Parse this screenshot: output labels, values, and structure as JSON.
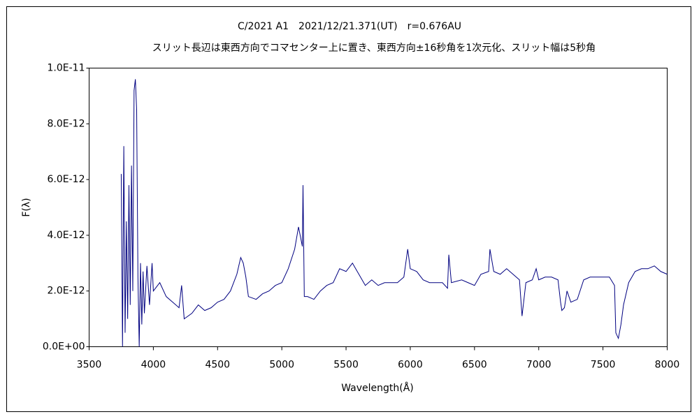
{
  "chart_data": {
    "type": "line",
    "title": "C/2021 A1　2021/12/21.371(UT)　r=0.676AU",
    "subtitle": "スリット長辺は東西方向でコマセンター上に置き、東西方向±16秒角を1次元化、スリット幅は5秒角",
    "x_label": "Wavelength(Å)",
    "y_label": "F(λ)",
    "color": "#000080",
    "xlim": [
      3500,
      8000
    ],
    "xticks": [
      3500,
      4000,
      4500,
      5000,
      5500,
      6000,
      6500,
      7000,
      7500,
      8000
    ],
    "ylim": [
      0,
      1e-11
    ],
    "yticks": [
      {
        "value": 0,
        "label": "0.0E+00"
      },
      {
        "value": 2e-12,
        "label": "2.0E-12"
      },
      {
        "value": 4e-12,
        "label": "4.0E-12"
      },
      {
        "value": 6e-12,
        "label": "6.0E-12"
      },
      {
        "value": 8e-12,
        "label": "8.0E-12"
      },
      {
        "value": 1e-11,
        "label": "1.0E-11"
      }
    ],
    "grid": false,
    "x": [
      3750,
      3760,
      3770,
      3780,
      3790,
      3800,
      3810,
      3820,
      3830,
      3840,
      3850,
      3860,
      3870,
      3880,
      3890,
      3900,
      3910,
      3920,
      3930,
      3950,
      3970,
      3990,
      4000,
      4050,
      4100,
      4150,
      4200,
      4220,
      4240,
      4300,
      4350,
      4400,
      4450,
      4500,
      4550,
      4600,
      4650,
      4680,
      4700,
      4720,
      4740,
      4800,
      4850,
      4900,
      4950,
      5000,
      5050,
      5100,
      5130,
      5160,
      5165,
      5175,
      5200,
      5250,
      5300,
      5350,
      5400,
      5450,
      5500,
      5550,
      5600,
      5650,
      5700,
      5750,
      5800,
      5850,
      5900,
      5950,
      5980,
      6000,
      6050,
      6100,
      6150,
      6200,
      6250,
      6290,
      6300,
      6320,
      6400,
      6450,
      6500,
      6550,
      6610,
      6620,
      6650,
      6700,
      6750,
      6800,
      6850,
      6870,
      6900,
      6950,
      6980,
      7000,
      7050,
      7100,
      7150,
      7170,
      7180,
      7200,
      7220,
      7250,
      7300,
      7350,
      7400,
      7450,
      7500,
      7550,
      7590,
      7600,
      7620,
      7640,
      7660,
      7700,
      7750,
      7800,
      7850,
      7900,
      7950,
      8000
    ],
    "values": [
      6.2e-12,
      0,
      7.2e-12,
      5e-13,
      4.5e-12,
      1e-12,
      5.8e-12,
      1.5e-12,
      6.5e-12,
      2e-12,
      9.2e-12,
      9.6e-12,
      8.5e-12,
      2.5e-12,
      0,
      3e-12,
      8e-13,
      2.7e-12,
      1.2e-12,
      2.9e-12,
      1.5e-12,
      3e-12,
      2e-12,
      2.3e-12,
      1.8e-12,
      1.6e-12,
      1.4e-12,
      2.2e-12,
      1e-12,
      1.2e-12,
      1.5e-12,
      1.3e-12,
      1.4e-12,
      1.6e-12,
      1.7e-12,
      2e-12,
      2.6e-12,
      3.2e-12,
      3e-12,
      2.5e-12,
      1.8e-12,
      1.7e-12,
      1.9e-12,
      2e-12,
      2.2e-12,
      2.3e-12,
      2.8e-12,
      3.5e-12,
      4.3e-12,
      3.6e-12,
      5.8e-12,
      1.8e-12,
      1.8e-12,
      1.7e-12,
      2e-12,
      2.2e-12,
      2.3e-12,
      2.8e-12,
      2.7e-12,
      3e-12,
      2.6e-12,
      2.2e-12,
      2.4e-12,
      2.2e-12,
      2.3e-12,
      2.3e-12,
      2.3e-12,
      2.5e-12,
      3.5e-12,
      2.8e-12,
      2.7e-12,
      2.4e-12,
      2.3e-12,
      2.3e-12,
      2.3e-12,
      2.1e-12,
      3.3e-12,
      2.3e-12,
      2.4e-12,
      2.3e-12,
      2.2e-12,
      2.6e-12,
      2.7e-12,
      3.5e-12,
      2.7e-12,
      2.6e-12,
      2.8e-12,
      2.6e-12,
      2.4e-12,
      1.1e-12,
      2.3e-12,
      2.4e-12,
      2.8e-12,
      2.4e-12,
      2.5e-12,
      2.5e-12,
      2.4e-12,
      1.6e-12,
      1.3e-12,
      1.4e-12,
      2e-12,
      1.6e-12,
      1.7e-12,
      2.4e-12,
      2.5e-12,
      2.5e-12,
      2.5e-12,
      2.5e-12,
      2.2e-12,
      5e-13,
      3e-13,
      8e-13,
      1.5e-12,
      2.3e-12,
      2.7e-12,
      2.8e-12,
      2.8e-12,
      2.9e-12,
      2.7e-12,
      2.6e-12
    ]
  }
}
